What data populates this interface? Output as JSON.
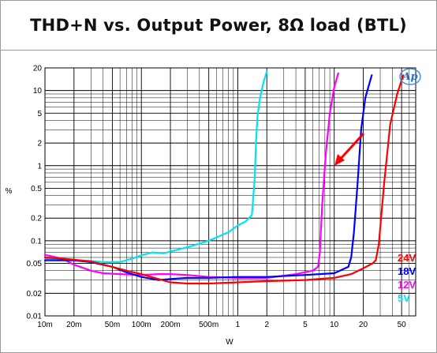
{
  "chart_data": {
    "type": "line",
    "title": "THD+N vs. Output Power, 8Ω load (BTL)",
    "xlabel": "W",
    "ylabel": "%",
    "xscale": "log",
    "yscale": "log",
    "xlim": [
      0.01,
      70
    ],
    "ylim": [
      0.01,
      20
    ],
    "x_ticks": [
      {
        "v": 0.01,
        "label": "10m"
      },
      {
        "v": 0.02,
        "label": "20m"
      },
      {
        "v": 0.05,
        "label": "50m"
      },
      {
        "v": 0.1,
        "label": "100m"
      },
      {
        "v": 0.2,
        "label": "200m"
      },
      {
        "v": 0.5,
        "label": "500m"
      },
      {
        "v": 1,
        "label": "1"
      },
      {
        "v": 2,
        "label": "2"
      },
      {
        "v": 5,
        "label": "5"
      },
      {
        "v": 10,
        "label": "10"
      },
      {
        "v": 20,
        "label": "20"
      },
      {
        "v": 50,
        "label": "50"
      }
    ],
    "y_ticks": [
      {
        "v": 0.01,
        "label": "0.01"
      },
      {
        "v": 0.02,
        "label": "0.02"
      },
      {
        "v": 0.05,
        "label": "0.05"
      },
      {
        "v": 0.1,
        "label": "0.1"
      },
      {
        "v": 0.2,
        "label": "0.2"
      },
      {
        "v": 0.5,
        "label": "0.5"
      },
      {
        "v": 1,
        "label": "1"
      },
      {
        "v": 2,
        "label": "2"
      },
      {
        "v": 5,
        "label": "5"
      },
      {
        "v": 10,
        "label": "10"
      },
      {
        "v": 20,
        "label": "20"
      }
    ],
    "grid": true,
    "legend_position": "bottom-right",
    "series": [
      {
        "name": "24V",
        "color": "#ff0000",
        "x": [
          0.01,
          0.015,
          0.02,
          0.03,
          0.05,
          0.07,
          0.1,
          0.15,
          0.2,
          0.3,
          0.5,
          1,
          2,
          5,
          10,
          15,
          20,
          25,
          27,
          29,
          33,
          38,
          45,
          52
        ],
        "y": [
          0.06,
          0.058,
          0.056,
          0.053,
          0.045,
          0.04,
          0.036,
          0.031,
          0.028,
          0.027,
          0.027,
          0.028,
          0.029,
          0.03,
          0.032,
          0.036,
          0.043,
          0.05,
          0.055,
          0.09,
          0.6,
          3.5,
          9,
          16
        ]
      },
      {
        "name": "18V",
        "color": "#0000ff",
        "x": [
          0.01,
          0.015,
          0.02,
          0.03,
          0.05,
          0.07,
          0.1,
          0.15,
          0.2,
          0.3,
          0.5,
          1,
          2,
          5,
          10,
          14,
          15,
          16,
          17.5,
          19,
          21,
          24.5
        ],
        "y": [
          0.055,
          0.055,
          0.055,
          0.052,
          0.045,
          0.038,
          0.033,
          0.03,
          0.031,
          0.032,
          0.032,
          0.033,
          0.033,
          0.035,
          0.037,
          0.045,
          0.06,
          0.13,
          0.6,
          3,
          8,
          16
        ]
      },
      {
        "name": "12V",
        "color": "#ff00ff",
        "x": [
          0.01,
          0.015,
          0.02,
          0.03,
          0.04,
          0.06,
          0.1,
          0.15,
          0.2,
          0.3,
          0.5,
          1,
          2,
          4,
          6,
          6.8,
          7.1,
          7.5,
          8.2,
          9,
          10,
          11
        ],
        "y": [
          0.065,
          0.058,
          0.048,
          0.04,
          0.037,
          0.036,
          0.035,
          0.036,
          0.036,
          0.035,
          0.033,
          0.032,
          0.032,
          0.036,
          0.04,
          0.045,
          0.07,
          0.3,
          1.5,
          5,
          11,
          17
        ]
      },
      {
        "name": "5V",
        "color": "#00e5ee",
        "x": [
          0.01,
          0.015,
          0.02,
          0.03,
          0.04,
          0.06,
          0.08,
          0.1,
          0.13,
          0.17,
          0.2,
          0.3,
          0.5,
          0.8,
          1.0,
          1.2,
          1.4,
          1.5,
          1.55,
          1.6,
          1.7,
          1.85,
          2.0
        ],
        "y": [
          0.058,
          0.056,
          0.055,
          0.054,
          0.052,
          0.052,
          0.058,
          0.064,
          0.07,
          0.068,
          0.072,
          0.082,
          0.1,
          0.13,
          0.16,
          0.18,
          0.22,
          0.7,
          2.2,
          4.5,
          8,
          13,
          18
        ]
      }
    ]
  }
}
